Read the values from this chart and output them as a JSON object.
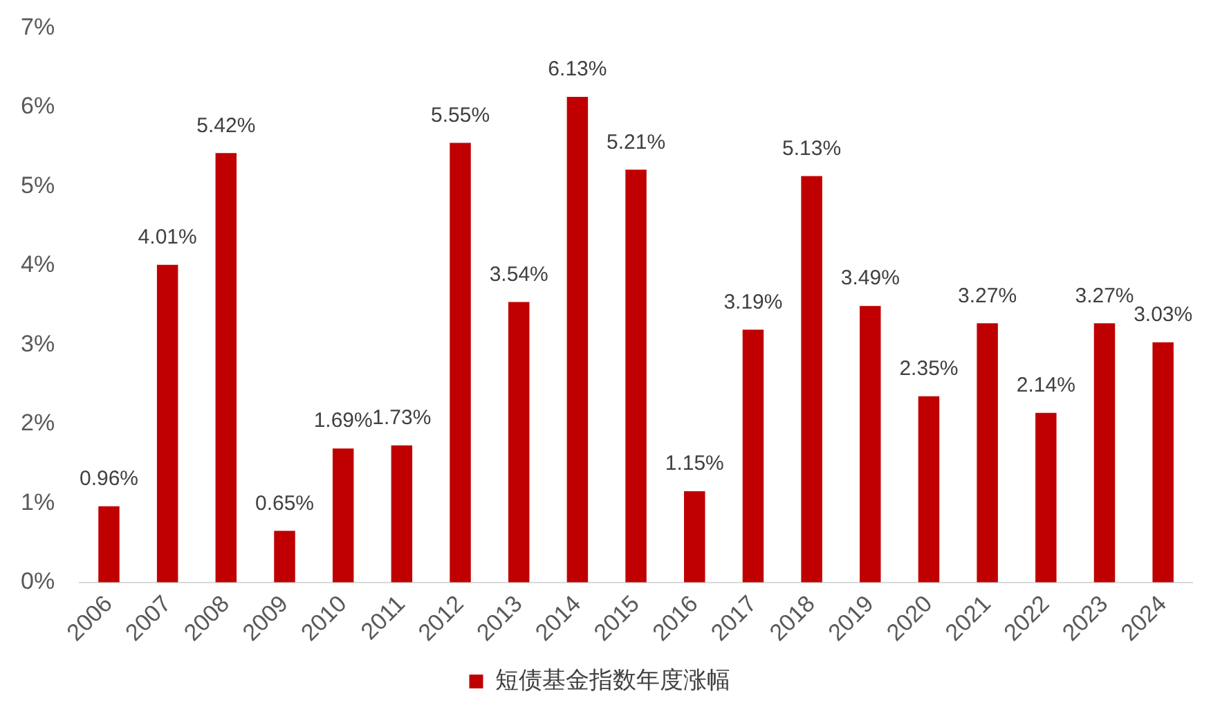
{
  "chart_data": {
    "type": "bar",
    "categories": [
      "2006",
      "2007",
      "2008",
      "2009",
      "2010",
      "2011",
      "2012",
      "2013",
      "2014",
      "2015",
      "2016",
      "2017",
      "2018",
      "2019",
      "2020",
      "2021",
      "2022",
      "2023",
      "2024"
    ],
    "series": [
      {
        "name": "短债基金指数年度涨幅",
        "color": "#c00000",
        "values": [
          0.96,
          4.01,
          5.42,
          0.65,
          1.69,
          1.73,
          5.55,
          3.54,
          6.13,
          5.21,
          1.15,
          3.19,
          5.13,
          3.49,
          2.35,
          3.27,
          2.14,
          3.27,
          3.03
        ],
        "value_labels": [
          "0.96%",
          "4.01%",
          "5.42%",
          "0.65%",
          "1.69%",
          "1.73%",
          "5.55%",
          "3.54%",
          "6.13%",
          "5.21%",
          "1.15%",
          "3.19%",
          "5.13%",
          "3.49%",
          "2.35%",
          "3.27%",
          "2.14%",
          "3.27%",
          "3.03%"
        ]
      }
    ],
    "ylim": [
      0,
      7
    ],
    "yticks": [
      {
        "value": 0,
        "label": "0%"
      },
      {
        "value": 1,
        "label": "1%"
      },
      {
        "value": 2,
        "label": "2%"
      },
      {
        "value": 3,
        "label": "3%"
      },
      {
        "value": 4,
        "label": "4%"
      },
      {
        "value": 5,
        "label": "5%"
      },
      {
        "value": 6,
        "label": "6%"
      },
      {
        "value": 7,
        "label": "7%"
      }
    ],
    "grid": false,
    "legend": "bottom"
  }
}
